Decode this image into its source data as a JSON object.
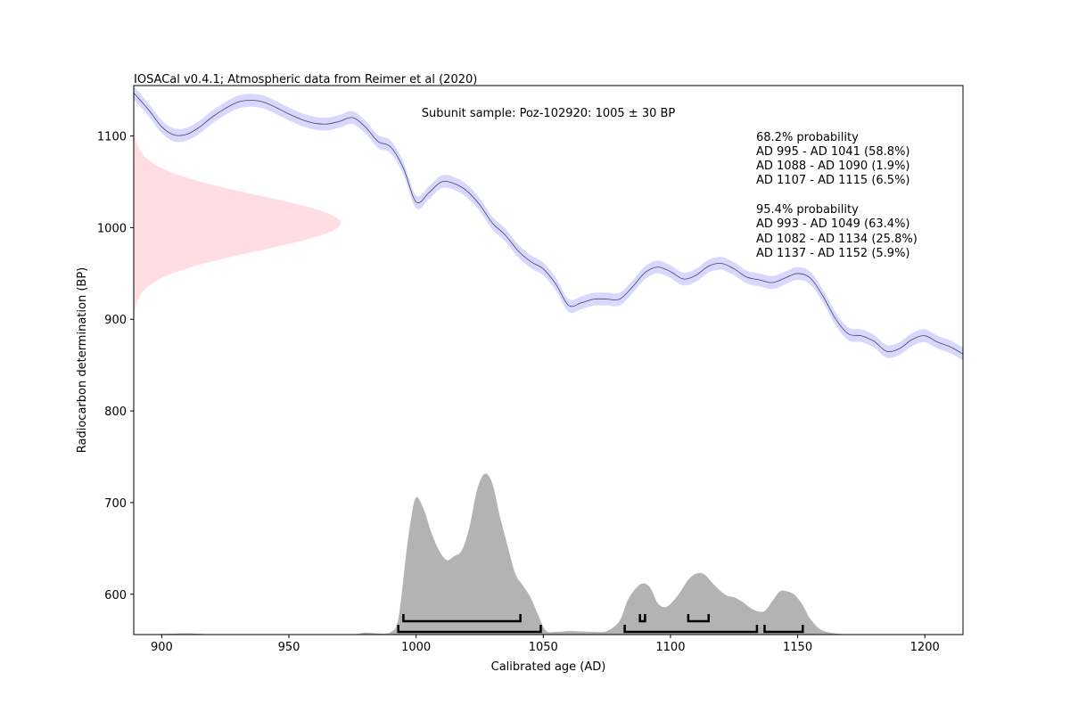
{
  "chart_data": {
    "type": "area",
    "title": "IOSACal v0.4.1; Atmospheric data from Reimer et al (2020)",
    "subtitle": "Subunit sample: Poz-102920: 1005 ± 30 BP",
    "xlabel": "Calibrated age (AD)",
    "ylabel": "Radiocarbon determination (BP)",
    "xlim": [
      889,
      1215
    ],
    "ylim": [
      556,
      1155
    ],
    "x_ticks": [
      900,
      950,
      1000,
      1050,
      1100,
      1150,
      1200
    ],
    "y_ticks": [
      600,
      700,
      800,
      900,
      1000,
      1100
    ],
    "grid": false,
    "colors": {
      "calibration_band": "#d8d8ff",
      "calibration_line": "#444466",
      "sample_gaussian": "#ffdde3",
      "probability_area": "#b3b3b3",
      "interval_bars": "#000000"
    },
    "sample": {
      "mean_bp": 1005,
      "sigma": 30
    },
    "calibration_curve": {
      "sigma": 7,
      "x": [
        889,
        895,
        900,
        905,
        910,
        915,
        920,
        925,
        930,
        935,
        940,
        945,
        950,
        955,
        960,
        965,
        970,
        975,
        980,
        985,
        990,
        995,
        1000,
        1005,
        1010,
        1015,
        1020,
        1025,
        1030,
        1035,
        1040,
        1045,
        1050,
        1055,
        1060,
        1065,
        1070,
        1075,
        1080,
        1085,
        1090,
        1095,
        1100,
        1105,
        1110,
        1115,
        1120,
        1125,
        1130,
        1135,
        1140,
        1145,
        1150,
        1155,
        1160,
        1165,
        1170,
        1175,
        1180,
        1185,
        1190,
        1195,
        1200,
        1205,
        1210,
        1215
      ],
      "y": [
        1147,
        1128,
        1110,
        1101,
        1102,
        1110,
        1121,
        1130,
        1137,
        1139,
        1137,
        1131,
        1124,
        1118,
        1114,
        1113,
        1116,
        1120,
        1110,
        1094,
        1088,
        1065,
        1028,
        1038,
        1050,
        1048,
        1040,
        1025,
        1005,
        992,
        975,
        963,
        955,
        938,
        915,
        918,
        922,
        922,
        922,
        935,
        951,
        957,
        952,
        944,
        948,
        958,
        961,
        955,
        946,
        943,
        940,
        945,
        950,
        945,
        925,
        900,
        884,
        882,
        876,
        865,
        868,
        878,
        882,
        875,
        870,
        862
      ]
    },
    "probability_distribution": {
      "x": [
        889,
        900,
        910,
        920,
        940,
        960,
        975,
        980,
        985,
        990,
        993,
        996,
        998,
        1000,
        1003,
        1006,
        1009,
        1012,
        1015,
        1018,
        1021,
        1024,
        1027,
        1030,
        1033,
        1036,
        1039,
        1042,
        1045,
        1048,
        1051,
        1055,
        1060,
        1065,
        1070,
        1075,
        1080,
        1083,
        1086,
        1089,
        1092,
        1095,
        1098,
        1101,
        1104,
        1107,
        1110,
        1113,
        1116,
        1119,
        1122,
        1125,
        1128,
        1131,
        1134,
        1137,
        1140,
        1143,
        1146,
        1149,
        1152,
        1155,
        1160,
        1170,
        1180,
        1200,
        1215
      ],
      "density": [
        0.0,
        0.003,
        0.007,
        0.001,
        0.0,
        0.001,
        0.001,
        0.01,
        0.006,
        0.012,
        0.08,
        0.4,
        0.59,
        0.7,
        0.64,
        0.52,
        0.43,
        0.38,
        0.4,
        0.43,
        0.55,
        0.74,
        0.82,
        0.77,
        0.6,
        0.45,
        0.31,
        0.25,
        0.19,
        0.1,
        0.02,
        0.014,
        0.018,
        0.016,
        0.014,
        0.018,
        0.07,
        0.17,
        0.23,
        0.26,
        0.24,
        0.16,
        0.14,
        0.17,
        0.22,
        0.28,
        0.31,
        0.31,
        0.27,
        0.23,
        0.2,
        0.19,
        0.17,
        0.14,
        0.12,
        0.12,
        0.17,
        0.22,
        0.22,
        0.2,
        0.15,
        0.08,
        0.02,
        0.0,
        0.0,
        0.0,
        0.0
      ]
    },
    "interval_bars": {
      "prob_68": [
        [
          995,
          1041
        ],
        [
          1088,
          1090
        ],
        [
          1107,
          1115
        ]
      ],
      "prob_95": [
        [
          993,
          1049
        ],
        [
          1082,
          1134
        ],
        [
          1137,
          1152
        ]
      ]
    },
    "annotations": {
      "heading_68": "68.2% probability",
      "ranges_68": [
        "AD 995 - AD 1041 (58.8%)",
        "AD 1088 - AD 1090 (1.9%)",
        "AD 1107 - AD 1115 (6.5%)"
      ],
      "heading_95": "95.4% probability",
      "ranges_95": [
        "AD 993 - AD 1049 (63.4%)",
        "AD 1082 - AD 1134 (25.8%)",
        "AD 1137 - AD 1152 (5.9%)"
      ]
    }
  }
}
